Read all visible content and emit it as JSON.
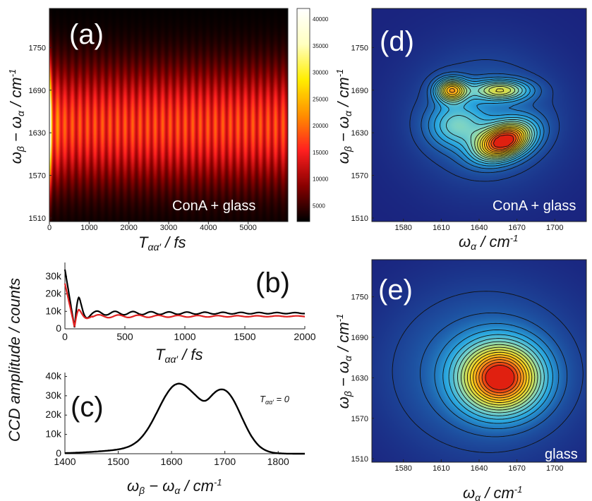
{
  "chart_data": [
    {
      "panel": "(a)",
      "type": "heatmap",
      "annotation": "ConA + glass",
      "xlabel": "Tαα′ / fs",
      "ylabel": "ωβ − ωα / cm-1",
      "xlim": [
        0,
        6000
      ],
      "ylim": [
        1505,
        1805
      ],
      "xticks": [
        "0",
        "1000",
        "2000",
        "3000",
        "4000",
        "5000"
      ],
      "xtick_values": [
        0,
        1000,
        2000,
        3000,
        4000,
        5000
      ],
      "yticks": [
        "1510",
        "1570",
        "1630",
        "1690",
        "1750"
      ],
      "ytick_values": [
        1510,
        1570,
        1630,
        1690,
        1750
      ],
      "colorbar_ticks": [
        "5000",
        "10000",
        "15000",
        "20000",
        "25000",
        "30000",
        "35000",
        "40000"
      ],
      "colorbar_values": [
        5000,
        10000,
        15000,
        20000,
        25000,
        30000,
        35000,
        40000
      ],
      "colorbar_range": [
        2000,
        42000
      ],
      "intensity_peak_center_cm": 1640,
      "oscillation_period_fs": 190,
      "colormap": [
        "#000000",
        "#8a0000",
        "#ff2020",
        "#ff9000",
        "#ffee00",
        "#ffffc0",
        "#ffffff"
      ]
    },
    {
      "panel": "(b)",
      "type": "line",
      "xlabel": "Tαα′ / fs",
      "xlim": [
        0,
        2000
      ],
      "ylim": [
        0,
        38000
      ],
      "xticks": [
        "0",
        "500",
        "1000",
        "1500",
        "2000"
      ],
      "xtick_values": [
        0,
        500,
        1000,
        1500,
        2000
      ],
      "yticks": [
        "0",
        "10k",
        "20k",
        "30k"
      ],
      "ytick_values": [
        0,
        10000,
        20000,
        30000
      ],
      "series": [
        {
          "color": "#000000",
          "t0": 34000,
          "dip": 800,
          "baseline": 9000,
          "peak2": 18000
        },
        {
          "color": "#e02020",
          "t0": 26000,
          "dip": 1200,
          "baseline": 7200,
          "peak2": 11000
        }
      ]
    },
    {
      "panel": "(c)",
      "type": "line",
      "annotation": "Tαα′ = 0",
      "xlabel": "ωβ − ωα / cm-1",
      "xlim": [
        1400,
        1850
      ],
      "ylim": [
        0,
        42000
      ],
      "xticks": [
        "1400",
        "1500",
        "1600",
        "1700",
        "1800"
      ],
      "xtick_values": [
        1400,
        1500,
        1600,
        1700,
        1800
      ],
      "yticks": [
        "0",
        "10k",
        "20k",
        "30k",
        "40k"
      ],
      "ytick_values": [
        0,
        10000,
        20000,
        30000,
        40000
      ],
      "peaks": [
        {
          "x": 1620,
          "y": 38000
        },
        {
          "x": 1695,
          "y": 33500
        }
      ],
      "dip": {
        "x": 1663,
        "y": 24500
      },
      "color": "#000000"
    },
    {
      "panel": "(d)",
      "type": "heatmap",
      "annotation": "ConA + glass",
      "xlabel": "ωα / cm-1",
      "ylabel": "ωβ − ωα / cm-1",
      "xlim": [
        1555,
        1725
      ],
      "ylim": [
        1505,
        1805
      ],
      "xticks": [
        "1580",
        "1610",
        "1640",
        "1670",
        "1700"
      ],
      "xtick_values": [
        1580,
        1610,
        1640,
        1670,
        1700
      ],
      "yticks": [
        "1510",
        "1570",
        "1630",
        "1690",
        "1750"
      ],
      "ytick_values": [
        1510,
        1570,
        1630,
        1690,
        1750
      ],
      "peaks": [
        {
          "x": 1660,
          "y": 1618,
          "amp": 1.0
        },
        {
          "x": 1618,
          "y": 1688,
          "amp": 0.72
        },
        {
          "x": 1655,
          "y": 1688,
          "amp": 0.55
        }
      ],
      "colormap": [
        "#1a237e",
        "#1e5aa8",
        "#2aa8e0",
        "#7ad3c8",
        "#c8e060",
        "#ffd21a",
        "#ff8a1a",
        "#e02010"
      ]
    },
    {
      "panel": "(e)",
      "type": "heatmap",
      "annotation": "glass",
      "xlabel": "ωα / cm-1",
      "ylabel": "ωβ − ωα / cm-1",
      "xlim": [
        1555,
        1725
      ],
      "ylim": [
        1505,
        1805
      ],
      "xticks": [
        "1580",
        "1610",
        "1640",
        "1670",
        "1700"
      ],
      "xtick_values": [
        1580,
        1610,
        1640,
        1670,
        1700
      ],
      "yticks": [
        "1510",
        "1570",
        "1630",
        "1690",
        "1750"
      ],
      "yticks_values": [
        1510,
        1570,
        1630,
        1690,
        1750
      ],
      "peaks": [
        {
          "x": 1657,
          "y": 1630,
          "amp": 1.0
        }
      ],
      "colormap": [
        "#1a237e",
        "#1e5aa8",
        "#2aa8e0",
        "#7ad3c8",
        "#c8e060",
        "#ffd21a",
        "#ff8a1a",
        "#e02010"
      ]
    }
  ],
  "shared_labels": {
    "ccd_ylabel": "CCD amplitude / counts"
  }
}
